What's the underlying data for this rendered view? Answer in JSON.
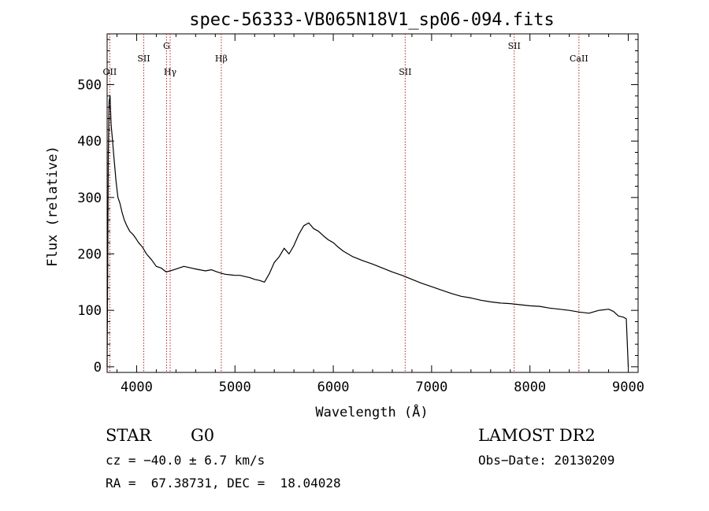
{
  "chart_data": {
    "type": "line",
    "title": "spec-56333-VB065N18V1_sp06-094.fits",
    "xlabel": "Wavelength (Å)",
    "ylabel": "Flux (relative)",
    "xlim": [
      3700,
      9100
    ],
    "ylim": [
      -10,
      590
    ],
    "xticks": [
      4000,
      5000,
      6000,
      7000,
      8000,
      9000
    ],
    "yticks": [
      0,
      100,
      200,
      300,
      400,
      500
    ],
    "grid": false,
    "series": [
      {
        "color": "#000000",
        "x": [
          3700,
          3705,
          3712,
          3720,
          3730,
          3740,
          3755,
          3770,
          3790,
          3810,
          3830,
          3850,
          3875,
          3900,
          3930,
          3960,
          3990,
          4020,
          4060,
          4100,
          4150,
          4200,
          4250,
          4300,
          4340,
          4380,
          4430,
          4480,
          4530,
          4580,
          4640,
          4700,
          4760,
          4820,
          4860,
          4900,
          4950,
          5000,
          5050,
          5100,
          5150,
          5200,
          5250,
          5300,
          5350,
          5400,
          5450,
          5500,
          5550,
          5600,
          5650,
          5700,
          5750,
          5800,
          5850,
          5900,
          5950,
          6000,
          6050,
          6100,
          6150,
          6200,
          6300,
          6400,
          6500,
          6600,
          6700,
          6800,
          6900,
          7000,
          7100,
          7200,
          7300,
          7400,
          7500,
          7600,
          7700,
          7800,
          7900,
          8000,
          8100,
          8200,
          8300,
          8400,
          8500,
          8600,
          8700,
          8800,
          8850,
          8900,
          8950,
          8980,
          9000
        ],
        "y": [
          0,
          150,
          380,
          470,
          480,
          430,
          400,
          370,
          330,
          300,
          290,
          275,
          260,
          250,
          240,
          235,
          228,
          220,
          212,
          200,
          190,
          178,
          175,
          168,
          170,
          172,
          175,
          178,
          176,
          174,
          172,
          170,
          172,
          168,
          166,
          164,
          163,
          162,
          162,
          160,
          158,
          155,
          153,
          150,
          165,
          185,
          195,
          210,
          200,
          215,
          235,
          250,
          255,
          245,
          240,
          232,
          225,
          220,
          212,
          205,
          200,
          195,
          188,
          182,
          175,
          168,
          162,
          155,
          148,
          142,
          136,
          130,
          125,
          122,
          118,
          115,
          113,
          112,
          110,
          108,
          107,
          104,
          102,
          100,
          97,
          95,
          100,
          102,
          98,
          90,
          88,
          85,
          0
        ]
      }
    ],
    "lines": [
      {
        "label": "OII",
        "x": 3727,
        "tier": 2
      },
      {
        "label": "SII",
        "x": 4072,
        "tier": 1
      },
      {
        "label": "G",
        "x": 4304,
        "tier": 0
      },
      {
        "label": "Hγ",
        "x": 4341,
        "tier": 2
      },
      {
        "label": "Hβ",
        "x": 4861,
        "tier": 1
      },
      {
        "label": "SII",
        "x": 6731,
        "tier": 2
      },
      {
        "label": "SII",
        "x": 7840,
        "tier": 0
      },
      {
        "label": "CaII",
        "x": 8498,
        "tier": 1
      }
    ],
    "line_color": "#b22222"
  },
  "info": {
    "class": "STAR",
    "subclass": "G0",
    "survey": "LAMOST DR2",
    "cz": "cz = −40.0 ± 6.7 km/s",
    "obs_date": "Obs−Date: 20130209",
    "coords": "RA =  67.38731, DEC =  18.04028"
  }
}
